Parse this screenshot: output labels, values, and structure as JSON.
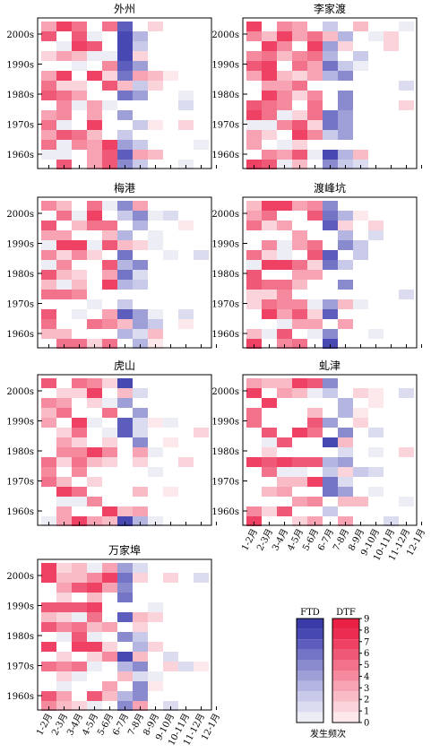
{
  "chart_data": {
    "type": "heatmap",
    "x_categories": [
      "1-2月",
      "2-3月",
      "3-4月",
      "4-5月",
      "5-6月",
      "6-7月",
      "7-8月",
      "8-9月",
      "9-10月",
      "10-11月",
      "11-12月",
      "12-1月"
    ],
    "y_categories": [
      "2000s",
      "1990s",
      "1980s",
      "1970s",
      "1960s"
    ],
    "panels": [
      {
        "title": "外州",
        "ftd": [
          [
            10,
            2
          ],
          [
            10,
            4
          ],
          [
            10,
            5
          ],
          [
            10,
            8
          ],
          [
            11,
            6
          ],
          [
            12,
            1
          ],
          [
            12,
            3
          ],
          [
            12,
            4
          ]
        ],
        "dtf": [
          [
            0,
            1
          ],
          [
            0,
            2
          ],
          [
            0,
            3
          ],
          [
            0,
            4
          ],
          [
            0,
            10
          ],
          [
            1,
            2
          ],
          [
            1,
            6
          ],
          [
            1,
            12
          ],
          [
            2,
            2
          ],
          [
            2,
            6
          ],
          [
            2,
            12
          ],
          [
            3,
            2
          ],
          [
            3,
            4
          ],
          [
            3,
            6
          ],
          [
            3,
            10
          ],
          [
            3,
            12
          ],
          [
            4,
            8
          ],
          [
            4,
            10
          ],
          [
            5,
            0
          ],
          [
            6,
            0
          ],
          [
            7,
            0
          ],
          [
            7,
            1
          ],
          [
            7,
            4
          ],
          [
            7,
            6
          ],
          [
            8,
            5
          ],
          [
            8,
            7
          ],
          [
            8,
            9
          ],
          [
            8,
            11
          ],
          [
            9,
            0
          ],
          [
            9,
            3
          ],
          [
            9,
            7
          ],
          [
            9,
            11
          ],
          [
            10,
            0
          ],
          [
            10,
            8
          ],
          [
            10,
            9
          ],
          [
            10,
            11
          ],
          [
            11,
            0
          ],
          [
            11,
            3
          ],
          [
            11,
            9
          ],
          [
            11,
            10
          ],
          [
            11,
            11
          ],
          [
            12,
            1
          ],
          [
            12,
            7
          ],
          [
            12,
            9
          ],
          [
            12,
            10
          ],
          [
            12,
            11
          ],
          [
            13,
            0
          ],
          [
            13,
            7
          ],
          [
            13,
            9
          ],
          [
            14,
            7
          ],
          [
            14,
            9
          ]
        ]
      },
      {
        "title": "李家渡",
        "ftd": [
          [
            10,
            7
          ],
          [
            10,
            6
          ],
          [
            10,
            4
          ],
          [
            10,
            2
          ],
          [
            11,
            5
          ],
          [
            11,
            3
          ],
          [
            11,
            2
          ],
          [
            11,
            1
          ],
          [
            12,
            0
          ],
          [
            12,
            1
          ],
          [
            12,
            3
          ],
          [
            12,
            4
          ],
          [
            12,
            6
          ],
          [
            12,
            7
          ],
          [
            13,
            6
          ],
          [
            13,
            4
          ],
          [
            13,
            1
          ]
        ],
        "dtf": [
          [
            0,
            1
          ],
          [
            0,
            2
          ],
          [
            0,
            3
          ],
          [
            0,
            4
          ],
          [
            0,
            10
          ],
          [
            1,
            2
          ],
          [
            1,
            6
          ],
          [
            2,
            2
          ],
          [
            2,
            6
          ],
          [
            3,
            2
          ],
          [
            3,
            4
          ],
          [
            3,
            6
          ],
          [
            3,
            10
          ],
          [
            4,
            8
          ],
          [
            4,
            10
          ],
          [
            5,
            0
          ],
          [
            6,
            0
          ],
          [
            7,
            0
          ],
          [
            7,
            1
          ],
          [
            7,
            4
          ],
          [
            7,
            6
          ],
          [
            8,
            5
          ],
          [
            8,
            7
          ],
          [
            8,
            9
          ],
          [
            9,
            0
          ],
          [
            9,
            3
          ],
          [
            9,
            7
          ],
          [
            10,
            0
          ],
          [
            10,
            8
          ],
          [
            10,
            9
          ],
          [
            11,
            0
          ],
          [
            11,
            3
          ],
          [
            11,
            9
          ],
          [
            12,
            1
          ],
          [
            12,
            7
          ],
          [
            12,
            9
          ],
          [
            13,
            0
          ],
          [
            13,
            7
          ],
          [
            13,
            9
          ],
          [
            14,
            7
          ],
          [
            14,
            9
          ]
        ]
      }
    ],
    "panel_titles": [
      "外州",
      "李家渡",
      "梅港",
      "渡峰坑",
      "虎山",
      "虬津",
      "万家埠"
    ],
    "grid": false,
    "legend": {
      "position": "bottom-right",
      "ftd_label": "FTD",
      "dtf_label": "DTF",
      "scale": [
        0,
        1,
        2,
        3,
        4,
        5,
        6,
        7,
        8,
        9
      ],
      "caption": "发生频次"
    }
  },
  "colors": {
    "ftd_ramp": [
      "#ededf6",
      "#dcdcf0",
      "#c9c9e9",
      "#b5b5e1",
      "#9f9fd8",
      "#8a8acf",
      "#7474c6",
      "#5d5dbd",
      "#4848b3",
      "#3a3aa9"
    ],
    "dtf_ramp": [
      "#fde8ec",
      "#fbd3da",
      "#f9bcc7",
      "#f7a3b3",
      "#f58a9f",
      "#f2718b",
      "#f05877",
      "#ee4163",
      "#ec2d52",
      "#ea2044"
    ]
  }
}
